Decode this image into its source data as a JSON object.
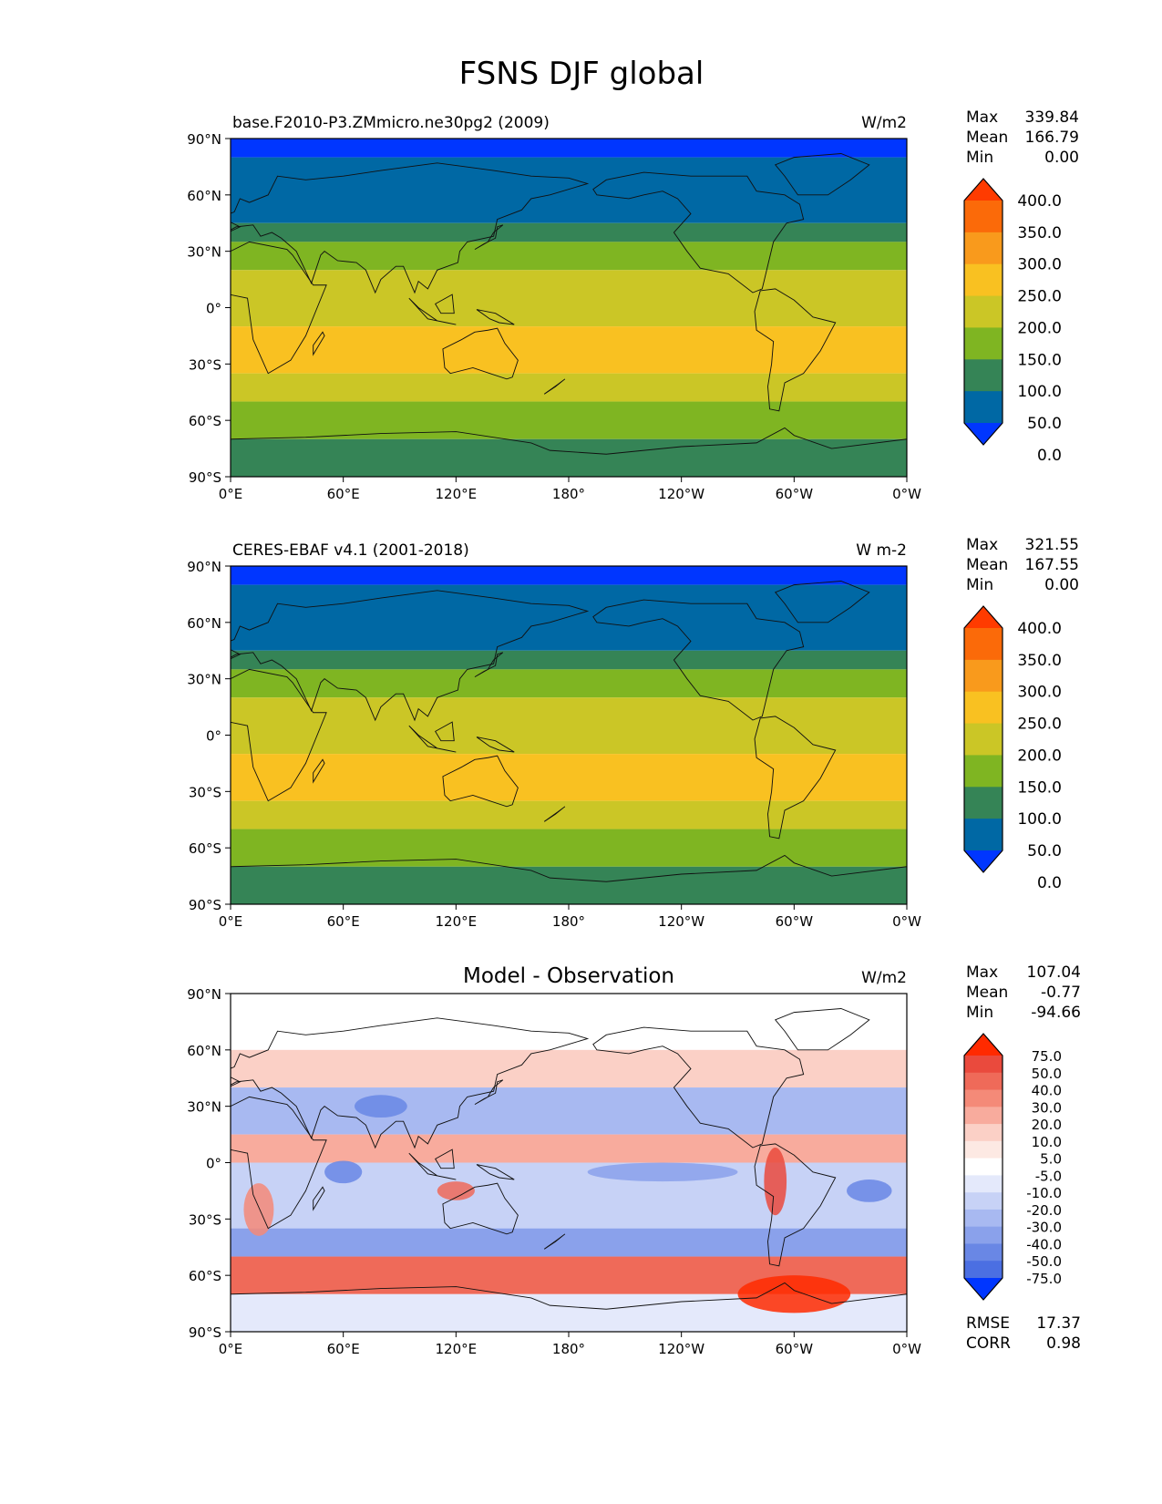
{
  "figure": {
    "title": "FSNS DJF global"
  },
  "axes": {
    "lat_ticks": [
      "90°N",
      "60°N",
      "30°N",
      "0°",
      "30°S",
      "60°S",
      "90°S"
    ],
    "lon_ticks": [
      "0°E",
      "60°E",
      "120°E",
      "180°",
      "120°W",
      "60°W",
      "0°W"
    ]
  },
  "chart_data": [
    {
      "type": "heatmap",
      "title": "",
      "left_label": "base.F2010-P3.ZMmicro.ne30pg2 (2009)",
      "units": "W/m2",
      "stats": [
        {
          "label": "Max",
          "value": "339.84"
        },
        {
          "label": "Mean",
          "value": "166.79"
        },
        {
          "label": "Min",
          "value": "0.00"
        }
      ],
      "xlim": [
        0,
        360
      ],
      "ylim": [
        -90,
        90
      ],
      "colorbar": {
        "labels": [
          "400.0",
          "350.0",
          "300.0",
          "250.0",
          "200.0",
          "150.0",
          "100.0",
          "50.0",
          "0.0"
        ],
        "colors": [
          "#ff3b00",
          "#fb6a09",
          "#f99a1c",
          "#f9c121",
          "#cbc626",
          "#7fb522",
          "#358456",
          "#0068a4",
          "#0036ff"
        ]
      },
      "latitude_bands": [
        {
          "lat": [
            80,
            90
          ],
          "value": "0-50"
        },
        {
          "lat": [
            45,
            80
          ],
          "value": "50-100"
        },
        {
          "lat": [
            35,
            45
          ],
          "value": "100-150"
        },
        {
          "lat": [
            20,
            35
          ],
          "value": "150-200"
        },
        {
          "lat": [
            -10,
            20
          ],
          "value": "200-250"
        },
        {
          "lat": [
            -35,
            -10
          ],
          "value": "250-300"
        },
        {
          "lat": [
            -50,
            -35
          ],
          "value": "200-250"
        },
        {
          "lat": [
            -70,
            -50
          ],
          "value": "150-200"
        },
        {
          "lat": [
            -90,
            -70
          ],
          "value": "100-150"
        }
      ]
    },
    {
      "type": "heatmap",
      "title": "",
      "left_label": "CERES-EBAF v4.1 (2001-2018)",
      "units": "W m-2",
      "stats": [
        {
          "label": "Max",
          "value": "321.55"
        },
        {
          "label": "Mean",
          "value": "167.55"
        },
        {
          "label": "Min",
          "value": "0.00"
        }
      ],
      "xlim": [
        0,
        360
      ],
      "ylim": [
        -90,
        90
      ],
      "colorbar": {
        "labels": [
          "400.0",
          "350.0",
          "300.0",
          "250.0",
          "200.0",
          "150.0",
          "100.0",
          "50.0",
          "0.0"
        ],
        "colors": [
          "#ff3b00",
          "#fb6a09",
          "#f99a1c",
          "#f9c121",
          "#cbc626",
          "#7fb522",
          "#358456",
          "#0068a4",
          "#0036ff"
        ]
      },
      "latitude_bands": [
        {
          "lat": [
            80,
            90
          ],
          "value": "0-50"
        },
        {
          "lat": [
            45,
            80
          ],
          "value": "50-100"
        },
        {
          "lat": [
            35,
            45
          ],
          "value": "100-150"
        },
        {
          "lat": [
            20,
            35
          ],
          "value": "150-200"
        },
        {
          "lat": [
            -10,
            20
          ],
          "value": "200-250"
        },
        {
          "lat": [
            -35,
            -10
          ],
          "value": "250-300"
        },
        {
          "lat": [
            -50,
            -35
          ],
          "value": "200-250"
        },
        {
          "lat": [
            -70,
            -50
          ],
          "value": "150-200"
        },
        {
          "lat": [
            -90,
            -70
          ],
          "value": "100-150"
        }
      ]
    },
    {
      "type": "heatmap",
      "title": "Model - Observation",
      "left_label": "",
      "units": "W/m2",
      "stats": [
        {
          "label": "Max",
          "value": "107.04"
        },
        {
          "label": "Mean",
          "value": "-0.77"
        },
        {
          "label": "Min",
          "value": "-94.66"
        }
      ],
      "footer_stats": [
        {
          "label": "RMSE",
          "value": "17.37"
        },
        {
          "label": "CORR",
          "value": "0.98"
        }
      ],
      "xlim": [
        0,
        360
      ],
      "ylim": [
        -90,
        90
      ],
      "colorbar": {
        "labels": [
          "75.0",
          "50.0",
          "40.0",
          "30.0",
          "20.0",
          "10.0",
          "5.0",
          "-5.0",
          "-10.0",
          "-20.0",
          "-30.0",
          "-40.0",
          "-50.0",
          "-75.0"
        ],
        "colors": [
          "#ff2a00",
          "#ea4a3d",
          "#ef6a59",
          "#f48a78",
          "#f8ab9d",
          "#fbd0c6",
          "#fde9e3",
          "#ffffff",
          "#e4e9fb",
          "#c7d2f6",
          "#a8b9f1",
          "#8aa1eb",
          "#6987e5",
          "#4b6fe2",
          "#0036ff"
        ]
      },
      "latitude_bands": [
        {
          "lat": [
            60,
            90
          ],
          "value": "-5 to 5"
        },
        {
          "lat": [
            40,
            60
          ],
          "value": "10-20"
        },
        {
          "lat": [
            15,
            40
          ],
          "value": "-20 to -10"
        },
        {
          "lat": [
            0,
            15
          ],
          "value": "10-30"
        },
        {
          "lat": [
            -35,
            0
          ],
          "value": "-20 to 10"
        },
        {
          "lat": [
            -50,
            -35
          ],
          "value": "-30 to -10"
        },
        {
          "lat": [
            -70,
            -50
          ],
          "value": "20-50"
        },
        {
          "lat": [
            -90,
            -70
          ],
          "value": "-10 to 5"
        }
      ]
    }
  ]
}
